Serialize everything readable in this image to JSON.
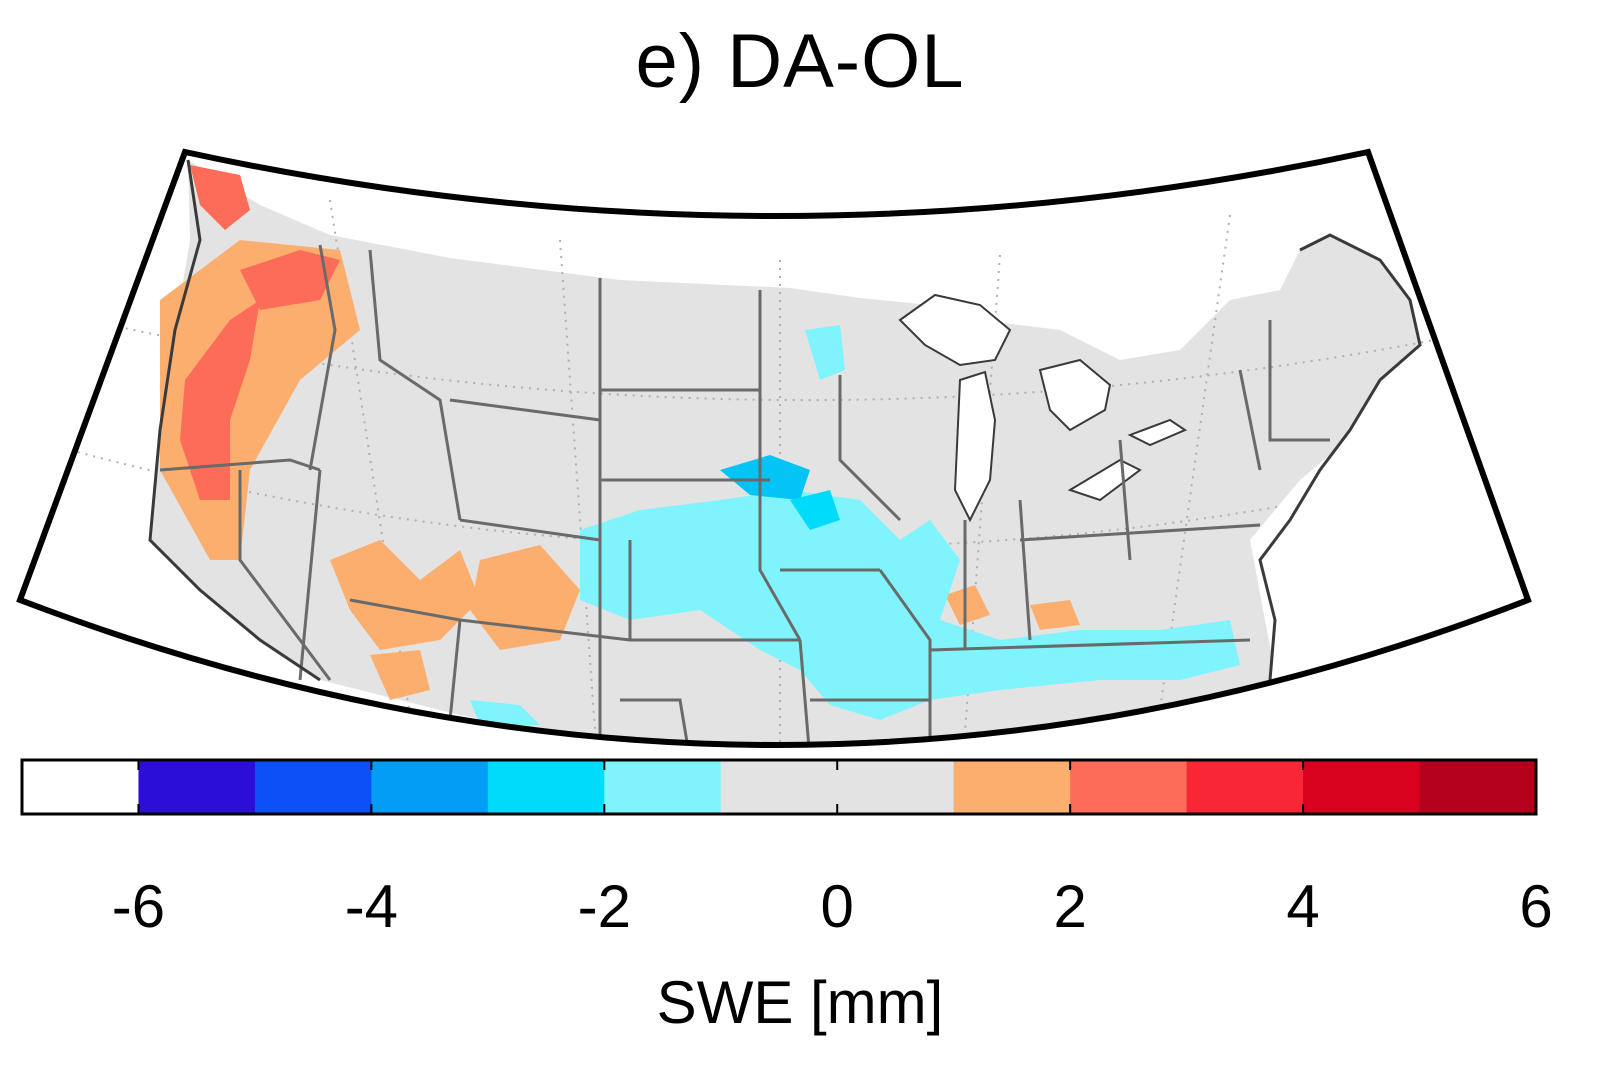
{
  "map": {
    "title": "e) DA-OL",
    "region": "contiguous-united-states",
    "projection": "conic",
    "graticule": "dotted",
    "colors": {
      "background": "#e3e3e3",
      "water": "#ffffff",
      "state_borders": "#6a6a6a",
      "coast": "#3a3a3a"
    }
  },
  "colorbar": {
    "label": "SWE [mm]",
    "ticks": [
      "-6",
      "-4",
      "-2",
      "0",
      "2",
      "4",
      "6"
    ],
    "colors": [
      "#ffffff",
      "#2b0fd8",
      "#0a50f5",
      "#039df5",
      "#00dafb",
      "#7ff4fc",
      "#e3e3e3",
      "#e3e3e3",
      "#fcae6e",
      "#fc6c58",
      "#f72736",
      "#d8021f",
      "#b5001e"
    ],
    "orientation": "horizontal",
    "placement": "bottom"
  }
}
